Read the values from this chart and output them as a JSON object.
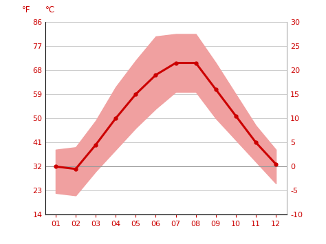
{
  "months": [
    1,
    2,
    3,
    4,
    5,
    6,
    7,
    8,
    9,
    10,
    11,
    12
  ],
  "month_labels": [
    "01",
    "02",
    "03",
    "04",
    "05",
    "06",
    "07",
    "08",
    "09",
    "10",
    "11",
    "12"
  ],
  "avg_temp_c": [
    0.0,
    -0.5,
    4.5,
    10.0,
    15.0,
    19.0,
    21.5,
    21.5,
    16.0,
    10.5,
    5.0,
    0.5
  ],
  "max_temp_c": [
    3.5,
    4.0,
    9.5,
    16.5,
    22.0,
    27.0,
    27.5,
    27.5,
    21.5,
    15.0,
    8.5,
    3.5
  ],
  "min_temp_c": [
    -5.5,
    -6.0,
    -1.0,
    3.5,
    8.0,
    12.0,
    15.5,
    15.5,
    10.0,
    5.5,
    1.0,
    -3.5
  ],
  "line_color": "#cc0000",
  "band_color": "#f0a0a0",
  "zero_line_color": "#999999",
  "ylim_c": [
    -10,
    30
  ],
  "yticks_c": [
    -10,
    -5,
    0,
    5,
    10,
    15,
    20,
    25,
    30
  ],
  "yticks_f": [
    14,
    23,
    32,
    41,
    50,
    59,
    68,
    77,
    86
  ],
  "grid_color": "#cccccc",
  "background_color": "#ffffff",
  "tick_color": "#cc0000",
  "marker": "o",
  "marker_size": 3.5,
  "line_width": 2.2,
  "tick_fontsize": 8
}
